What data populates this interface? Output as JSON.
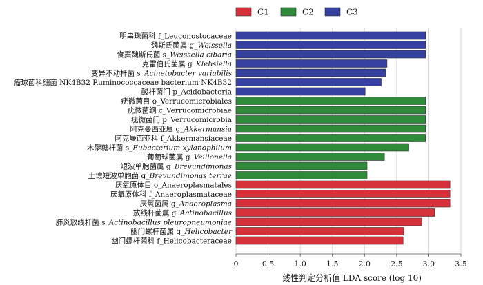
{
  "chart_data": {
    "type": "bar",
    "orientation": "horizontal",
    "xlabel": "线性判定分析值 LDA score (log 10)",
    "xlim": [
      0,
      3.5
    ],
    "xticks": [
      "0",
      "0.5",
      "1.0",
      "1.5",
      "2.0",
      "2.5",
      "3.0",
      "3.5"
    ],
    "tick_values": [
      0,
      0.5,
      1.0,
      1.5,
      2.0,
      2.5,
      3.0,
      3.5
    ],
    "grid": true,
    "legend_position": "top",
    "groups": [
      {
        "name": "C1",
        "color": "#d6303a"
      },
      {
        "name": "C2",
        "color": "#2f8b3a"
      },
      {
        "name": "C3",
        "color": "#3540a0"
      }
    ],
    "bars": [
      {
        "parts": [
          {
            "t": "明串珠菌科  f_Leuconostocaceae"
          }
        ],
        "value": 2.95,
        "group": "C3"
      },
      {
        "parts": [
          {
            "t": "魏斯氏菌属  g_"
          },
          {
            "t": "Weissella",
            "i": true
          }
        ],
        "value": 2.95,
        "group": "C3"
      },
      {
        "parts": [
          {
            "t": "食窦魏斯氏菌  s_"
          },
          {
            "t": "Weissella cibaria",
            "i": true
          }
        ],
        "value": 2.95,
        "group": "C3"
      },
      {
        "parts": [
          {
            "t": "克雷伯氏菌属  g_"
          },
          {
            "t": "Klebsiella",
            "i": true
          }
        ],
        "value": 2.35,
        "group": "C3"
      },
      {
        "parts": [
          {
            "t": "变异不动杆菌  s_"
          },
          {
            "t": "Acinetobacter variabilis",
            "i": true
          }
        ],
        "value": 2.33,
        "group": "C3"
      },
      {
        "parts": [
          {
            "t": "瘤球菌科细菌  NK4B32 Ruminococcaceae bacterium NK4B32"
          }
        ],
        "value": 2.26,
        "group": "C3"
      },
      {
        "parts": [
          {
            "t": "酸杆菌门  p_Acidobacteria"
          }
        ],
        "value": 2.01,
        "group": "C3"
      },
      {
        "parts": [
          {
            "t": "疣微菌目  o_Verrucomicrobiales"
          }
        ],
        "value": 2.95,
        "group": "C2"
      },
      {
        "parts": [
          {
            "t": "疣微菌纲  c_Verrucomicrobiae"
          }
        ],
        "value": 2.95,
        "group": "C2"
      },
      {
        "parts": [
          {
            "t": "疣微菌门  p_Verrucomicrobia"
          }
        ],
        "value": 2.95,
        "group": "C2"
      },
      {
        "parts": [
          {
            "t": "阿克曼西亚属  g_"
          },
          {
            "t": "Akkermansia",
            "i": true
          }
        ],
        "value": 2.95,
        "group": "C2"
      },
      {
        "parts": [
          {
            "t": "阿克曼西亚科  f_Akkermansiaceae"
          }
        ],
        "value": 2.95,
        "group": "C2"
      },
      {
        "parts": [
          {
            "t": "木聚糖杆菌  s_"
          },
          {
            "t": "Eubacterium xylanophilum",
            "i": true
          }
        ],
        "value": 2.69,
        "group": "C2"
      },
      {
        "parts": [
          {
            "t": "葡萄球菌属  g_"
          },
          {
            "t": "Veillonella",
            "i": true
          }
        ],
        "value": 2.31,
        "group": "C2"
      },
      {
        "parts": [
          {
            "t": "短波单胞菌属  g_"
          },
          {
            "t": "Brevundimonas",
            "i": true
          }
        ],
        "value": 2.04,
        "group": "C2"
      },
      {
        "parts": [
          {
            "t": "土壤短波单胞菌  g_"
          },
          {
            "t": "Brevundimonas terrae",
            "i": true
          }
        ],
        "value": 2.04,
        "group": "C2"
      },
      {
        "parts": [
          {
            "t": "厌氧原体目  o_Anaeroplasmatales"
          }
        ],
        "value": 3.33,
        "group": "C1"
      },
      {
        "parts": [
          {
            "t": "厌氧原体科  f_Anaeroplasmataceae"
          }
        ],
        "value": 3.33,
        "group": "C1"
      },
      {
        "parts": [
          {
            "t": "厌氧菌属  g_"
          },
          {
            "t": "Anaeroplasma",
            "i": true
          }
        ],
        "value": 3.33,
        "group": "C1"
      },
      {
        "parts": [
          {
            "t": "放线杆菌属  g_"
          },
          {
            "t": "Actinobacillus",
            "i": true
          }
        ],
        "value": 3.09,
        "group": "C1"
      },
      {
        "parts": [
          {
            "t": "肺炎放线杆菌  s_"
          },
          {
            "t": "Actinobacillus pleuropneumoniae",
            "i": true
          }
        ],
        "value": 2.89,
        "group": "C1"
      },
      {
        "parts": [
          {
            "t": "幽门螺杆菌属  g_"
          },
          {
            "t": "Helicobacter",
            "i": true
          }
        ],
        "value": 2.61,
        "group": "C1"
      },
      {
        "parts": [
          {
            "t": "幽门螺杆菌科  f_Helicobacteraceae"
          }
        ],
        "value": 2.6,
        "group": "C1"
      }
    ]
  }
}
